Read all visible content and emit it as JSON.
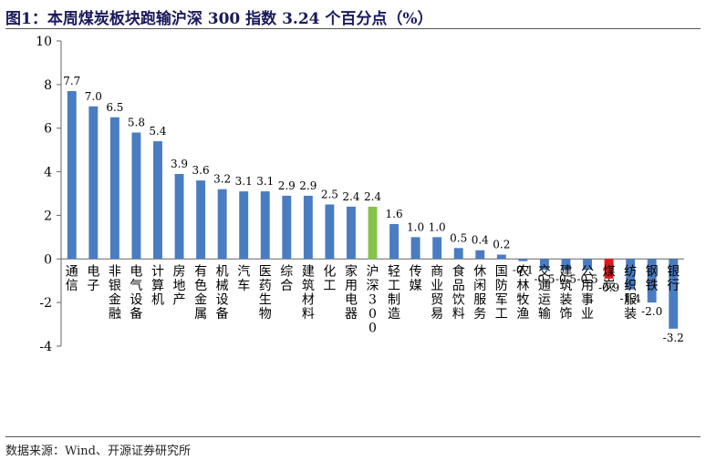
{
  "title": "图1：本周煤炭板块跑输沪深 300 指数 3.24 个百分点（%）",
  "source": "数据来源：Wind、开源证券研究所",
  "colors": {
    "default": "#4a7cc1",
    "highlight_index": "#86c34a",
    "highlight_coal": "#e8161b"
  },
  "chart_data": {
    "type": "bar",
    "title": "本周煤炭板块跑输沪深 300 指数 3.24 个百分点（%）",
    "xlabel": "",
    "ylabel": "",
    "ylim": [
      -4,
      10
    ],
    "yticks": [
      -4,
      -2,
      0,
      2,
      4,
      6,
      8,
      10
    ],
    "grid": false,
    "legend": "none",
    "categories": [
      "通信",
      "电子",
      "非银金融",
      "电气设备",
      "计算机",
      "房地产",
      "有色金属",
      "机械设备",
      "汽车",
      "医药生物",
      "综合",
      "建筑材料",
      "化工",
      "家用电器",
      "沪深300",
      "轻工制造",
      "传媒",
      "商业贸易",
      "食品饮料",
      "休闲服务",
      "国防军工",
      "农林牧渔",
      "交通运输",
      "建筑装饰",
      "公用事业",
      "煤炭",
      "纺织服装",
      "钢铁",
      "银行"
    ],
    "values": [
      7.7,
      7.0,
      6.5,
      5.8,
      5.4,
      3.9,
      3.6,
      3.2,
      3.1,
      3.1,
      2.9,
      2.9,
      2.5,
      2.4,
      2.4,
      1.6,
      1.0,
      1.0,
      0.5,
      0.4,
      0.2,
      -0.1,
      -0.5,
      -0.5,
      -0.5,
      -0.9,
      -1.4,
      -2.0,
      -3.2
    ],
    "labels": [
      "7.7",
      "7.0",
      "6.5",
      "5.8",
      "5.4",
      "3.9",
      "3.6",
      "3.2",
      "3.1",
      "3.1",
      "2.9",
      "2.9",
      "2.5",
      "2.4",
      "2.4",
      "1.6",
      "1.0",
      "1.0",
      "0.5",
      "0.4",
      "0.2",
      "-0.1",
      "-0.5",
      "-0.5",
      "-0.5",
      "-0.9",
      "-1.4",
      "-2.0",
      "-3.2"
    ],
    "highlights": {
      "沪深300": "#86c34a",
      "煤炭": "#e8161b"
    }
  }
}
